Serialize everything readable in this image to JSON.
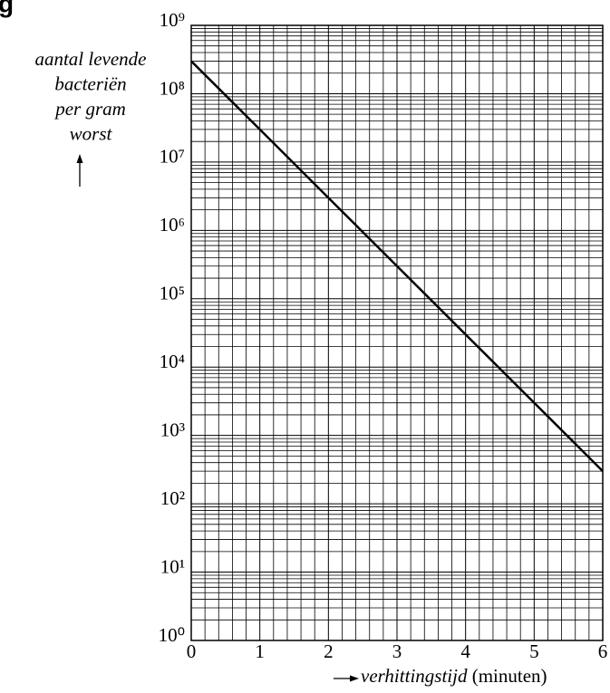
{
  "figure_label": "g",
  "chart_data": {
    "type": "line",
    "ylabel": [
      "aantal levende",
      "bacteriën",
      "per gram",
      "worst"
    ],
    "xlabel": "verhittingstijd",
    "xlabel_unit": "(minuten)",
    "x": [
      0,
      1,
      2,
      3,
      4,
      5,
      6
    ],
    "values": [
      300000000,
      30000000,
      3000000,
      300000,
      30000,
      3000,
      300
    ],
    "color": "#000000",
    "xlim": [
      0,
      6
    ],
    "xticks": [
      0,
      1,
      2,
      3,
      4,
      5,
      6
    ],
    "ylim": [
      1,
      1000000000
    ],
    "log_y": true,
    "yticks": [
      {
        "value": 1,
        "label": "10⁰"
      },
      {
        "value": 10,
        "label": "10¹"
      },
      {
        "value": 100,
        "label": "10²"
      },
      {
        "value": 1000,
        "label": "10³"
      },
      {
        "value": 10000,
        "label": "10⁴"
      },
      {
        "value": 100000,
        "label": "10⁵"
      },
      {
        "value": 1000000,
        "label": "10⁶"
      },
      {
        "value": 10000000,
        "label": "10⁷"
      },
      {
        "value": 100000000,
        "label": "10⁸"
      },
      {
        "value": 1000000000,
        "label": "10⁹"
      }
    ],
    "grid": true,
    "minor_grid": true
  }
}
